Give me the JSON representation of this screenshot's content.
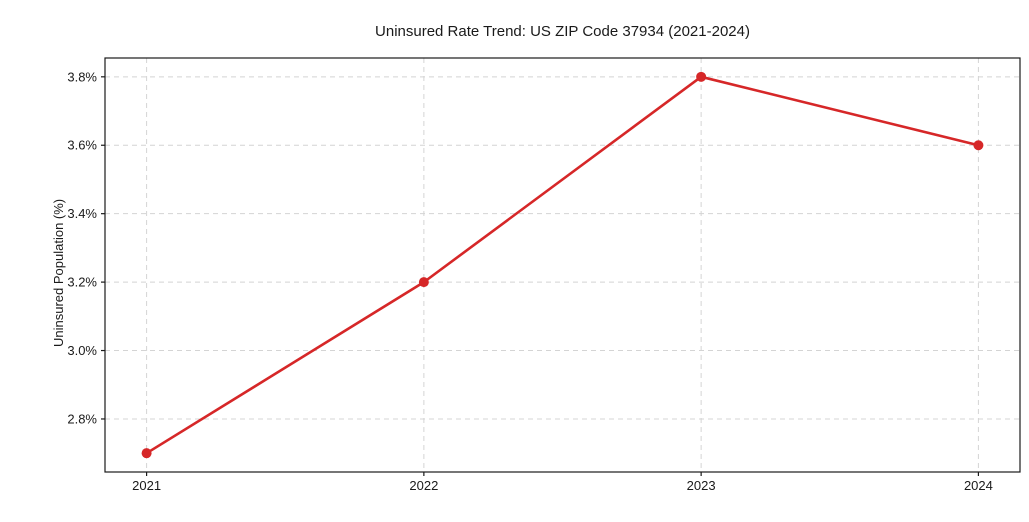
{
  "chart_data": {
    "type": "line",
    "title": "Uninsured Rate Trend: US ZIP Code 37934 (2021-2024)",
    "xlabel": "",
    "ylabel": "Uninsured Population (%)",
    "x": [
      2021,
      2022,
      2023,
      2024
    ],
    "x_tick_labels": [
      "2021",
      "2022",
      "2023",
      "2024"
    ],
    "series": [
      {
        "name": "Uninsured Population (%)",
        "values": [
          2.7,
          3.2,
          3.8,
          3.6
        ],
        "color": "#d62728",
        "marker": "circle"
      }
    ],
    "y_ticks": [
      2.8,
      3.0,
      3.2,
      3.4,
      3.6,
      3.8
    ],
    "y_tick_labels": [
      "2.8%",
      "3.0%",
      "3.2%",
      "3.4%",
      "3.6%",
      "3.8%"
    ],
    "xlim": [
      2020.85,
      2024.15
    ],
    "ylim": [
      2.645,
      3.855
    ],
    "grid": true,
    "grid_style": "dashed",
    "legend": "none"
  },
  "colors": {
    "line": "#d62728",
    "grid": "#d4d4d4",
    "spine": "#1a1a1a",
    "text": "#1a1a1a",
    "background": "#ffffff"
  }
}
